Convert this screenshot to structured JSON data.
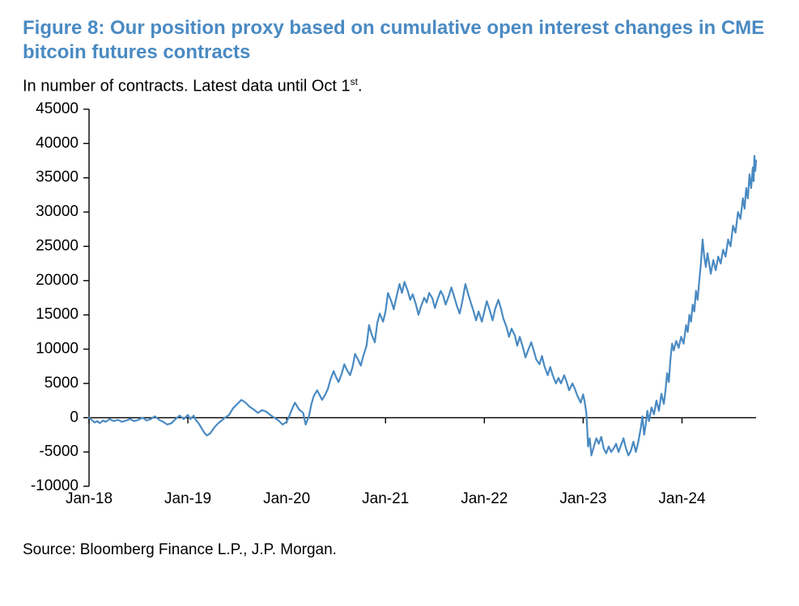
{
  "title": "Figure 8: Our position proxy based on cumulative open interest changes in CME bitcoin futures contracts",
  "subtitle_html": "In number of contracts. Latest data until Oct 1<sup>st</sup>.",
  "source": "Source: Bloomberg Finance L.P., J.P. Morgan.",
  "chart": {
    "type": "line",
    "background_color": "#ffffff",
    "line_color": "#4a8ac2",
    "line_width": 2.2,
    "axis_color": "#000000",
    "axis_width": 1.4,
    "tick_length": 7,
    "tick_label_fontsize": 19,
    "title_color": "#4a8ac2",
    "title_fontsize": 24,
    "subtitle_fontsize": 20,
    "source_fontsize": 19,
    "y": {
      "min": -10000,
      "max": 45000,
      "ticks": [
        -10000,
        -5000,
        0,
        5000,
        10000,
        15000,
        20000,
        25000,
        30000,
        35000,
        40000,
        45000
      ]
    },
    "x": {
      "min": 0,
      "max": 81,
      "tick_positions": [
        0,
        12,
        24,
        36,
        48,
        60,
        72
      ],
      "tick_labels": [
        "Jan-18",
        "Jan-19",
        "Jan-20",
        "Jan-21",
        "Jan-22",
        "Jan-23",
        "Jan-24"
      ]
    },
    "series": [
      {
        "name": "position_proxy",
        "color": "#4a8ac2",
        "data": [
          [
            0.0,
            0
          ],
          [
            0.3,
            -300
          ],
          [
            0.7,
            -700
          ],
          [
            1.0,
            -500
          ],
          [
            1.3,
            -800
          ],
          [
            1.7,
            -400
          ],
          [
            2.0,
            -600
          ],
          [
            2.5,
            -200
          ],
          [
            3.0,
            -500
          ],
          [
            3.5,
            -300
          ],
          [
            4.0,
            -600
          ],
          [
            4.5,
            -400
          ],
          [
            5.0,
            -200
          ],
          [
            5.5,
            -500
          ],
          [
            6.0,
            -300
          ],
          [
            6.5,
            0
          ],
          [
            7.0,
            -400
          ],
          [
            7.5,
            -200
          ],
          [
            8.0,
            200
          ],
          [
            8.5,
            -300
          ],
          [
            9.0,
            -600
          ],
          [
            9.5,
            -1000
          ],
          [
            10.0,
            -800
          ],
          [
            10.5,
            -200
          ],
          [
            11.0,
            300
          ],
          [
            11.5,
            -200
          ],
          [
            12.0,
            400
          ],
          [
            12.3,
            -200
          ],
          [
            12.7,
            300
          ],
          [
            13.0,
            -400
          ],
          [
            13.3,
            -800
          ],
          [
            13.7,
            -1600
          ],
          [
            14.0,
            -2200
          ],
          [
            14.3,
            -2600
          ],
          [
            14.7,
            -2300
          ],
          [
            15.0,
            -1800
          ],
          [
            15.3,
            -1300
          ],
          [
            15.7,
            -800
          ],
          [
            16.0,
            -500
          ],
          [
            16.5,
            0
          ],
          [
            17.0,
            400
          ],
          [
            17.5,
            1400
          ],
          [
            18.0,
            2000
          ],
          [
            18.5,
            2600
          ],
          [
            19.0,
            2200
          ],
          [
            19.5,
            1600
          ],
          [
            20.0,
            1200
          ],
          [
            20.5,
            700
          ],
          [
            21.0,
            1100
          ],
          [
            21.5,
            900
          ],
          [
            22.0,
            400
          ],
          [
            22.5,
            0
          ],
          [
            23.0,
            -400
          ],
          [
            23.5,
            -1000
          ],
          [
            24.0,
            -600
          ],
          [
            24.3,
            200
          ],
          [
            24.7,
            1400
          ],
          [
            25.0,
            2200
          ],
          [
            25.5,
            1200
          ],
          [
            26.0,
            700
          ],
          [
            26.3,
            -1000
          ],
          [
            26.7,
            200
          ],
          [
            27.0,
            2000
          ],
          [
            27.3,
            3200
          ],
          [
            27.7,
            4000
          ],
          [
            28.0,
            3300
          ],
          [
            28.3,
            2600
          ],
          [
            28.7,
            3400
          ],
          [
            29.0,
            4200
          ],
          [
            29.3,
            5500
          ],
          [
            29.7,
            6800
          ],
          [
            30.0,
            5900
          ],
          [
            30.3,
            5200
          ],
          [
            30.7,
            6500
          ],
          [
            31.0,
            7800
          ],
          [
            31.3,
            7000
          ],
          [
            31.7,
            6200
          ],
          [
            32.0,
            7400
          ],
          [
            32.3,
            9300
          ],
          [
            32.7,
            8400
          ],
          [
            33.0,
            7600
          ],
          [
            33.3,
            9000
          ],
          [
            33.7,
            10500
          ],
          [
            34.0,
            13500
          ],
          [
            34.3,
            12200
          ],
          [
            34.7,
            11000
          ],
          [
            35.0,
            13800
          ],
          [
            35.3,
            15200
          ],
          [
            35.7,
            14000
          ],
          [
            36.0,
            15500
          ],
          [
            36.3,
            18200
          ],
          [
            36.7,
            17000
          ],
          [
            37.0,
            15800
          ],
          [
            37.3,
            17500
          ],
          [
            37.7,
            19500
          ],
          [
            38.0,
            18200
          ],
          [
            38.3,
            19800
          ],
          [
            38.7,
            18500
          ],
          [
            39.0,
            17200
          ],
          [
            39.3,
            18000
          ],
          [
            39.7,
            16500
          ],
          [
            40.0,
            15000
          ],
          [
            40.3,
            16200
          ],
          [
            40.7,
            17500
          ],
          [
            41.0,
            16800
          ],
          [
            41.3,
            18200
          ],
          [
            41.7,
            17400
          ],
          [
            42.0,
            16000
          ],
          [
            42.3,
            17200
          ],
          [
            42.7,
            18500
          ],
          [
            43.0,
            17800
          ],
          [
            43.3,
            16500
          ],
          [
            43.7,
            17800
          ],
          [
            44.0,
            19000
          ],
          [
            44.3,
            17800
          ],
          [
            44.7,
            16200
          ],
          [
            45.0,
            15200
          ],
          [
            45.3,
            16800
          ],
          [
            45.7,
            19500
          ],
          [
            46.0,
            18200
          ],
          [
            46.3,
            17000
          ],
          [
            46.7,
            15500
          ],
          [
            47.0,
            14200
          ],
          [
            47.3,
            15500
          ],
          [
            47.7,
            14000
          ],
          [
            48.0,
            15500
          ],
          [
            48.3,
            17000
          ],
          [
            48.7,
            15500
          ],
          [
            49.0,
            14200
          ],
          [
            49.3,
            15800
          ],
          [
            49.7,
            17200
          ],
          [
            50.0,
            16000
          ],
          [
            50.3,
            14500
          ],
          [
            50.7,
            13200
          ],
          [
            51.0,
            11800
          ],
          [
            51.3,
            13000
          ],
          [
            51.7,
            12000
          ],
          [
            52.0,
            10500
          ],
          [
            52.3,
            11800
          ],
          [
            52.7,
            10200
          ],
          [
            53.0,
            8800
          ],
          [
            53.3,
            9800
          ],
          [
            53.7,
            11000
          ],
          [
            54.0,
            9800
          ],
          [
            54.3,
            8500
          ],
          [
            54.7,
            7800
          ],
          [
            55.0,
            9000
          ],
          [
            55.3,
            7500
          ],
          [
            55.7,
            6200
          ],
          [
            56.0,
            7400
          ],
          [
            56.3,
            6200
          ],
          [
            56.7,
            5000
          ],
          [
            57.0,
            5800
          ],
          [
            57.3,
            5000
          ],
          [
            57.7,
            6200
          ],
          [
            58.0,
            5200
          ],
          [
            58.3,
            4000
          ],
          [
            58.7,
            5000
          ],
          [
            59.0,
            4200
          ],
          [
            59.3,
            3200
          ],
          [
            59.7,
            2200
          ],
          [
            60.0,
            3400
          ],
          [
            60.2,
            2200
          ],
          [
            60.4,
            600
          ],
          [
            60.6,
            -4200
          ],
          [
            60.8,
            -3000
          ],
          [
            61.0,
            -5500
          ],
          [
            61.3,
            -4200
          ],
          [
            61.6,
            -3000
          ],
          [
            61.9,
            -3800
          ],
          [
            62.2,
            -2800
          ],
          [
            62.5,
            -4500
          ],
          [
            62.8,
            -5200
          ],
          [
            63.1,
            -4200
          ],
          [
            63.4,
            -5000
          ],
          [
            63.7,
            -4500
          ],
          [
            64.0,
            -3800
          ],
          [
            64.3,
            -5000
          ],
          [
            64.6,
            -4000
          ],
          [
            64.9,
            -3000
          ],
          [
            65.2,
            -4500
          ],
          [
            65.5,
            -5500
          ],
          [
            65.8,
            -4800
          ],
          [
            66.1,
            -3500
          ],
          [
            66.4,
            -5000
          ],
          [
            66.7,
            -3500
          ],
          [
            67.0,
            -1500
          ],
          [
            67.2,
            200
          ],
          [
            67.4,
            -2500
          ],
          [
            67.6,
            -1000
          ],
          [
            67.8,
            1000
          ],
          [
            68.0,
            -500
          ],
          [
            68.3,
            1500
          ],
          [
            68.6,
            500
          ],
          [
            68.9,
            2500
          ],
          [
            69.2,
            1000
          ],
          [
            69.5,
            3500
          ],
          [
            69.8,
            2000
          ],
          [
            70.0,
            4000
          ],
          [
            70.2,
            6500
          ],
          [
            70.4,
            5200
          ],
          [
            70.6,
            8500
          ],
          [
            70.8,
            10800
          ],
          [
            71.0,
            9800
          ],
          [
            71.3,
            11200
          ],
          [
            71.6,
            10200
          ],
          [
            71.9,
            11800
          ],
          [
            72.2,
            10800
          ],
          [
            72.5,
            13500
          ],
          [
            72.7,
            12500
          ],
          [
            72.9,
            15000
          ],
          [
            73.1,
            14000
          ],
          [
            73.3,
            16500
          ],
          [
            73.5,
            15500
          ],
          [
            73.7,
            18500
          ],
          [
            73.9,
            17200
          ],
          [
            74.1,
            20000
          ],
          [
            74.3,
            22500
          ],
          [
            74.5,
            26000
          ],
          [
            74.7,
            23500
          ],
          [
            74.9,
            22000
          ],
          [
            75.1,
            24000
          ],
          [
            75.3,
            22500
          ],
          [
            75.5,
            21000
          ],
          [
            75.8,
            23000
          ],
          [
            76.1,
            21500
          ],
          [
            76.4,
            23500
          ],
          [
            76.7,
            22500
          ],
          [
            77.0,
            24500
          ],
          [
            77.3,
            23500
          ],
          [
            77.6,
            26000
          ],
          [
            77.9,
            25000
          ],
          [
            78.2,
            28000
          ],
          [
            78.5,
            27000
          ],
          [
            78.8,
            30000
          ],
          [
            79.1,
            29000
          ],
          [
            79.4,
            32000
          ],
          [
            79.6,
            30500
          ],
          [
            79.8,
            33500
          ],
          [
            80.0,
            32000
          ],
          [
            80.2,
            35500
          ],
          [
            80.4,
            33500
          ],
          [
            80.6,
            36500
          ],
          [
            80.7,
            34500
          ],
          [
            80.8,
            38200
          ],
          [
            80.9,
            36000
          ],
          [
            81.0,
            37500
          ]
        ]
      }
    ]
  }
}
